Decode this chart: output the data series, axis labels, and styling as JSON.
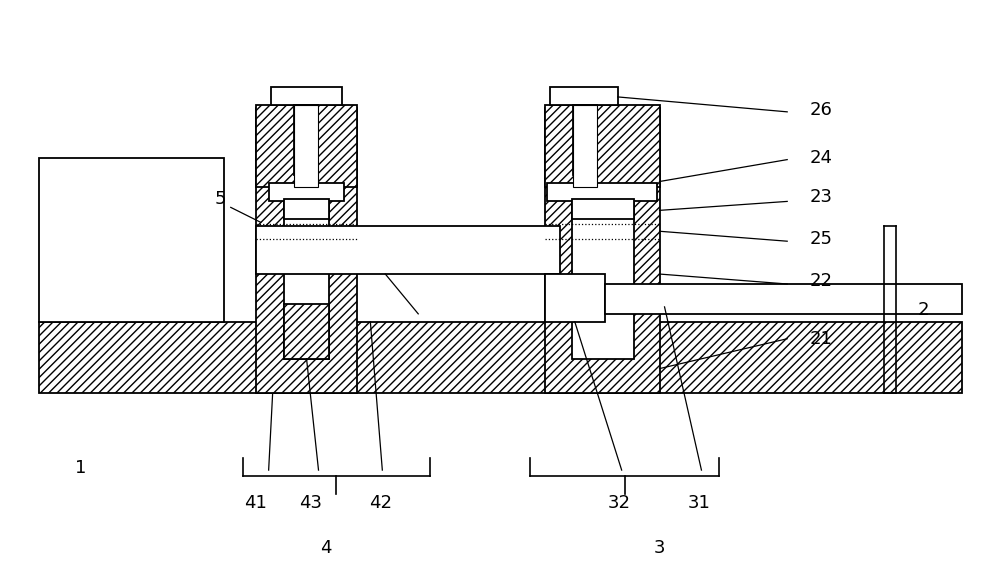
{
  "bg_color": "#ffffff",
  "line_color": "#000000",
  "fig_width": 10.0,
  "fig_height": 5.69,
  "dpi": 100
}
